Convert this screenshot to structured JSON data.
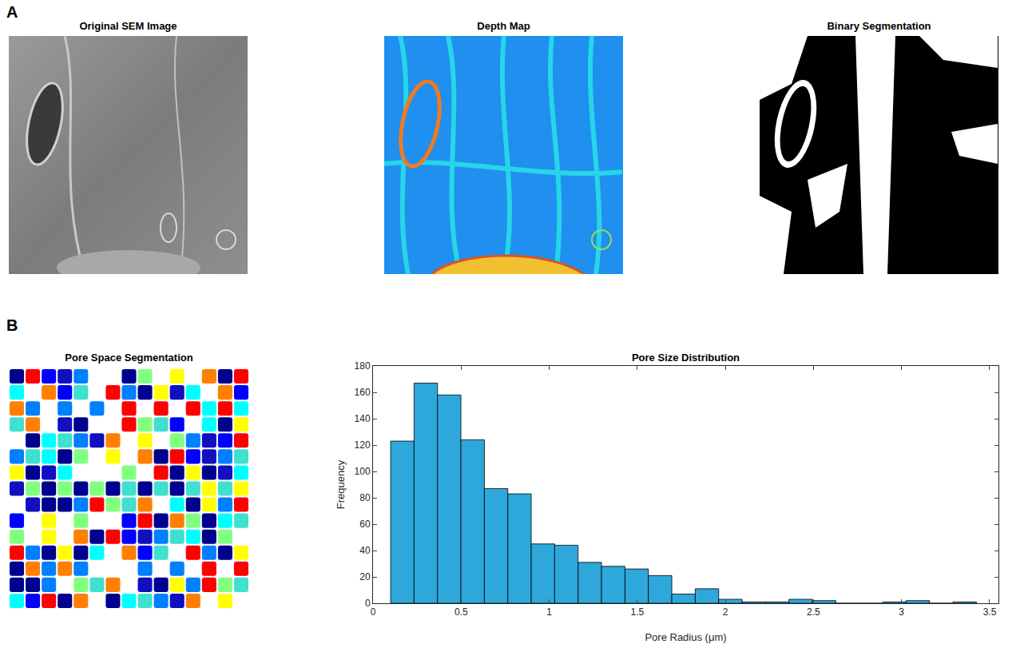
{
  "panel_labels": [
    "A",
    "B"
  ],
  "panels": [
    {
      "title": "Original SEM Image"
    },
    {
      "title": "Depth Map"
    },
    {
      "title": "Binary Segmentation"
    },
    {
      "title": "Pore Space Segmentation"
    }
  ],
  "chart_data": {
    "type": "histogram",
    "title": "Pore Size Distribution",
    "x_label": "Pore Radius (μm)",
    "y_label": "Frequency",
    "bins": [
      0.1,
      0.233,
      0.366,
      0.499,
      0.632,
      0.765,
      0.898,
      1.031,
      1.164,
      1.297,
      1.43,
      1.563,
      1.696,
      1.829,
      1.962,
      2.095,
      2.228,
      2.361,
      2.494,
      2.627,
      2.76,
      2.893,
      3.026,
      3.159,
      3.292,
      3.425
    ],
    "counts": [
      123,
      167,
      158,
      124,
      87,
      83,
      45,
      44,
      31,
      28,
      26,
      21,
      7,
      11,
      3,
      1,
      1,
      3,
      2,
      0,
      0,
      1,
      2,
      0,
      1
    ],
    "color": "#2ea7da",
    "xlim": [
      0,
      3.55
    ],
    "xticks": [
      0,
      0.5,
      1,
      1.5,
      2,
      2.5,
      3,
      3.5
    ],
    "ylim": [
      0,
      180
    ],
    "yticks": [
      0,
      20,
      40,
      60,
      80,
      100,
      120,
      140,
      160,
      180
    ],
    "grid": false
  }
}
